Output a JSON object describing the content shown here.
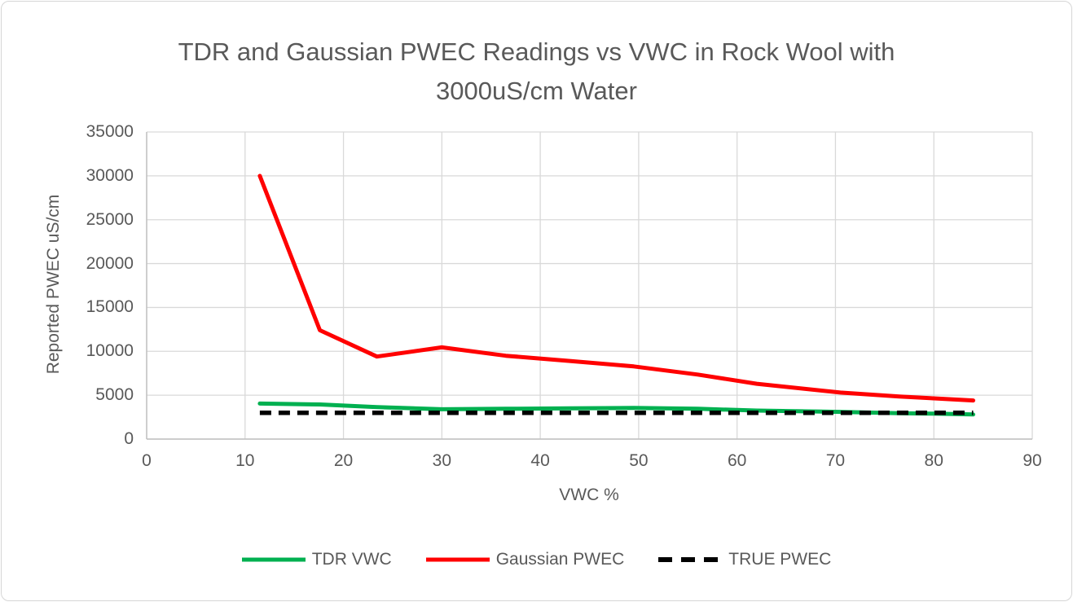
{
  "chart_data": {
    "type": "line",
    "title": "TDR and Gaussian PWEC Readings vs VWC in Rock Wool with 3000uS/cm Water",
    "title_lines": [
      "TDR and Gaussian PWEC Readings vs VWC in Rock Wool with",
      "3000uS/cm Water"
    ],
    "xlabel": "VWC %",
    "ylabel": "Reported PWEC uS/cm",
    "xlim": [
      0,
      90
    ],
    "ylim": [
      0,
      35000
    ],
    "xticks": [
      0,
      10,
      20,
      30,
      40,
      50,
      60,
      70,
      80,
      90
    ],
    "yticks": [
      0,
      5000,
      10000,
      15000,
      20000,
      25000,
      30000,
      35000
    ],
    "grid": true,
    "legend_position": "bottom",
    "x": [
      11.5,
      17.6,
      23.4,
      30,
      36.5,
      43,
      49.5,
      56,
      62,
      70.5,
      76.5,
      80,
      84
    ],
    "series": [
      {
        "name": "TDR VWC",
        "color": "#00B050",
        "style": "solid",
        "values": [
          4050,
          3950,
          3650,
          3400,
          3450,
          3500,
          3550,
          3450,
          3250,
          3100,
          2950,
          2900,
          2800
        ]
      },
      {
        "name": "Gaussian PWEC",
        "color": "#FF0000",
        "style": "solid",
        "values": [
          30000,
          12400,
          9400,
          10450,
          9500,
          8900,
          8280,
          7350,
          6300,
          5300,
          4850,
          4640,
          4400
        ]
      },
      {
        "name": "TRUE PWEC",
        "color": "#000000",
        "style": "dashed",
        "values": [
          3000,
          3000,
          3000,
          3000,
          3000,
          3000,
          3000,
          3000,
          3000,
          3000,
          3000,
          3000,
          3000
        ]
      }
    ],
    "style_colors": {
      "text": "#595959",
      "gridline": "#D9D9D9",
      "axis_line": "#BFBFBF",
      "frame_border": "#D6D6D6"
    }
  }
}
